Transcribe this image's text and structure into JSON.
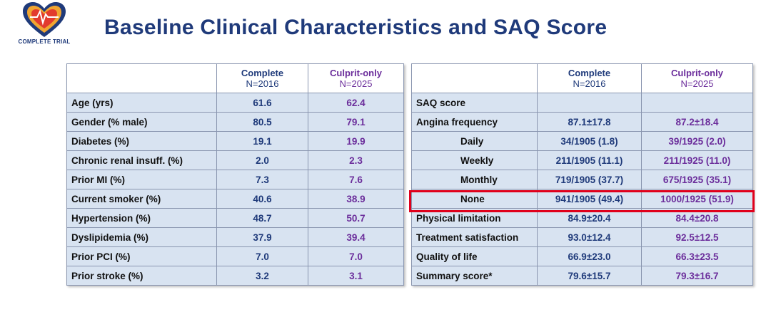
{
  "logo": {
    "text": "COMPLETE TRIAL"
  },
  "title": "Baseline Clinical Characteristics and SAQ Score",
  "colors": {
    "title": "#1f3a7a",
    "complete": "#1f3a7a",
    "culprit": "#6b2d9b",
    "row_bg": "#d8e3f1",
    "highlight": "#e0001b"
  },
  "left_table": {
    "headers": [
      {
        "name": "Complete",
        "n": "N=2016"
      },
      {
        "name": "Culprit-only",
        "n": "N=2025"
      }
    ],
    "rows": [
      {
        "label": "Age (yrs)",
        "complete": "61.6",
        "culprit": "62.4"
      },
      {
        "label": "Gender (% male)",
        "complete": "80.5",
        "culprit": "79.1"
      },
      {
        "label": "Diabetes (%)",
        "complete": "19.1",
        "culprit": "19.9"
      },
      {
        "label": "Chronic renal insuff. (%)",
        "complete": "2.0",
        "culprit": "2.3"
      },
      {
        "label": "Prior MI (%)",
        "complete": "7.3",
        "culprit": "7.6"
      },
      {
        "label": "Current smoker (%)",
        "complete": "40.6",
        "culprit": "38.9"
      },
      {
        "label": "Hypertension (%)",
        "complete": "48.7",
        "culprit": "50.7"
      },
      {
        "label": "Dyslipidemia (%)",
        "complete": "37.9",
        "culprit": "39.4"
      },
      {
        "label": "Prior PCI (%)",
        "complete": "7.0",
        "culprit": "7.0"
      },
      {
        "label": "Prior stroke (%)",
        "complete": "3.2",
        "culprit": "3.1"
      }
    ]
  },
  "right_table": {
    "headers": [
      {
        "name": "Complete",
        "n": "N=2016"
      },
      {
        "name": "Culprit-only",
        "n": "N=2025"
      }
    ],
    "rows": [
      {
        "label": "SAQ score",
        "complete": "",
        "culprit": ""
      },
      {
        "label": "Angina frequency",
        "complete": "87.1±17.8",
        "culprit": "87.2±18.4"
      },
      {
        "label": "Daily",
        "complete": "34/1905 (1.8)",
        "culprit": "39/1925 (2.0)"
      },
      {
        "label": "Weekly",
        "complete": "211/1905 (11.1)",
        "culprit": "211/1925 (11.0)"
      },
      {
        "label": "Monthly",
        "complete": "719/1905 (37.7)",
        "culprit": "675/1925 (35.1)"
      },
      {
        "label": "None",
        "complete": "941/1905 (49.4)",
        "culprit": "1000/1925 (51.9)"
      },
      {
        "label": "Physical limitation",
        "complete": "84.9±20.4",
        "culprit": "84.4±20.8"
      },
      {
        "label": "Treatment satisfaction",
        "complete": "93.0±12.4",
        "culprit": "92.5±12.5"
      },
      {
        "label": "Quality of life",
        "complete": "66.9±23.0",
        "culprit": "66.3±23.5"
      },
      {
        "label": "Summary score*",
        "complete": "79.6±15.7",
        "culprit": "79.3±16.7"
      }
    ]
  }
}
